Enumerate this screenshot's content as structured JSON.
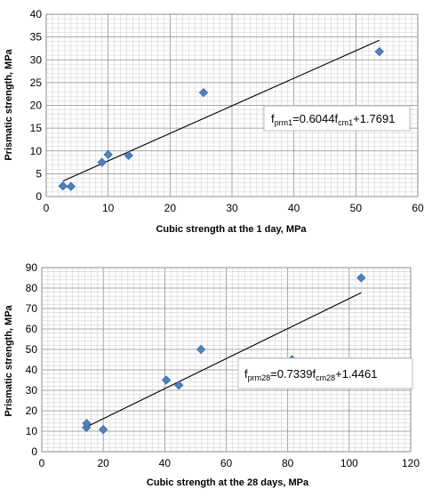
{
  "chart_data": [
    {
      "type": "scatter",
      "xlabel": "Cubic strength at the 1 day, MPa",
      "ylabel": "Prismatic strength, MPa",
      "xlim": [
        0,
        60
      ],
      "ylim": [
        0,
        40
      ],
      "x_ticks": [
        "0",
        "10",
        "20",
        "30",
        "40",
        "50",
        "60"
      ],
      "y_ticks": [
        "0",
        "5",
        "10",
        "15",
        "20",
        "25",
        "30",
        "35",
        "40"
      ],
      "points": [
        {
          "x": 2.7,
          "y": 2.3
        },
        {
          "x": 4.0,
          "y": 2.2
        },
        {
          "x": 9.0,
          "y": 7.5
        },
        {
          "x": 10.0,
          "y": 9.2
        },
        {
          "x": 13.3,
          "y": 9.0
        },
        {
          "x": 25.4,
          "y": 22.8
        },
        {
          "x": 53.8,
          "y": 31.8
        }
      ],
      "trendline": {
        "slope": 0.6044,
        "intercept": 1.7691,
        "x_range": [
          2.7,
          53.8
        ]
      },
      "equation": {
        "lhs": "f",
        "lhs_sub": "prm1",
        "middle": "=0.6044f",
        "rhs_sub": "cm1",
        "tail": "+1.7691"
      },
      "grid": true
    },
    {
      "type": "scatter",
      "xlabel": "Cubic strength at the 28 days, MPa",
      "ylabel": "Prismatic strength, MPa",
      "xlim": [
        0,
        120
      ],
      "ylim": [
        0,
        90
      ],
      "x_ticks": [
        "0",
        "20",
        "40",
        "60",
        "80",
        "100",
        "120"
      ],
      "y_ticks": [
        "0",
        "10",
        "20",
        "30",
        "40",
        "50",
        "60",
        "70",
        "80",
        "90"
      ],
      "points": [
        {
          "x": 14.5,
          "y": 11.8
        },
        {
          "x": 14.6,
          "y": 13.8
        },
        {
          "x": 20.0,
          "y": 10.8
        },
        {
          "x": 40.5,
          "y": 35.0
        },
        {
          "x": 44.6,
          "y": 32.5
        },
        {
          "x": 51.8,
          "y": 50.0
        },
        {
          "x": 81.4,
          "y": 45.0
        },
        {
          "x": 103.9,
          "y": 85.0
        }
      ],
      "trendline": {
        "slope": 0.7339,
        "intercept": 1.4461,
        "x_range": [
          14.5,
          103.9
        ]
      },
      "equation": {
        "lhs": "f",
        "lhs_sub": "prm28",
        "middle": "=0.7339f",
        "rhs_sub": "cm28",
        "tail": "+1.4461"
      },
      "grid": true
    }
  ]
}
